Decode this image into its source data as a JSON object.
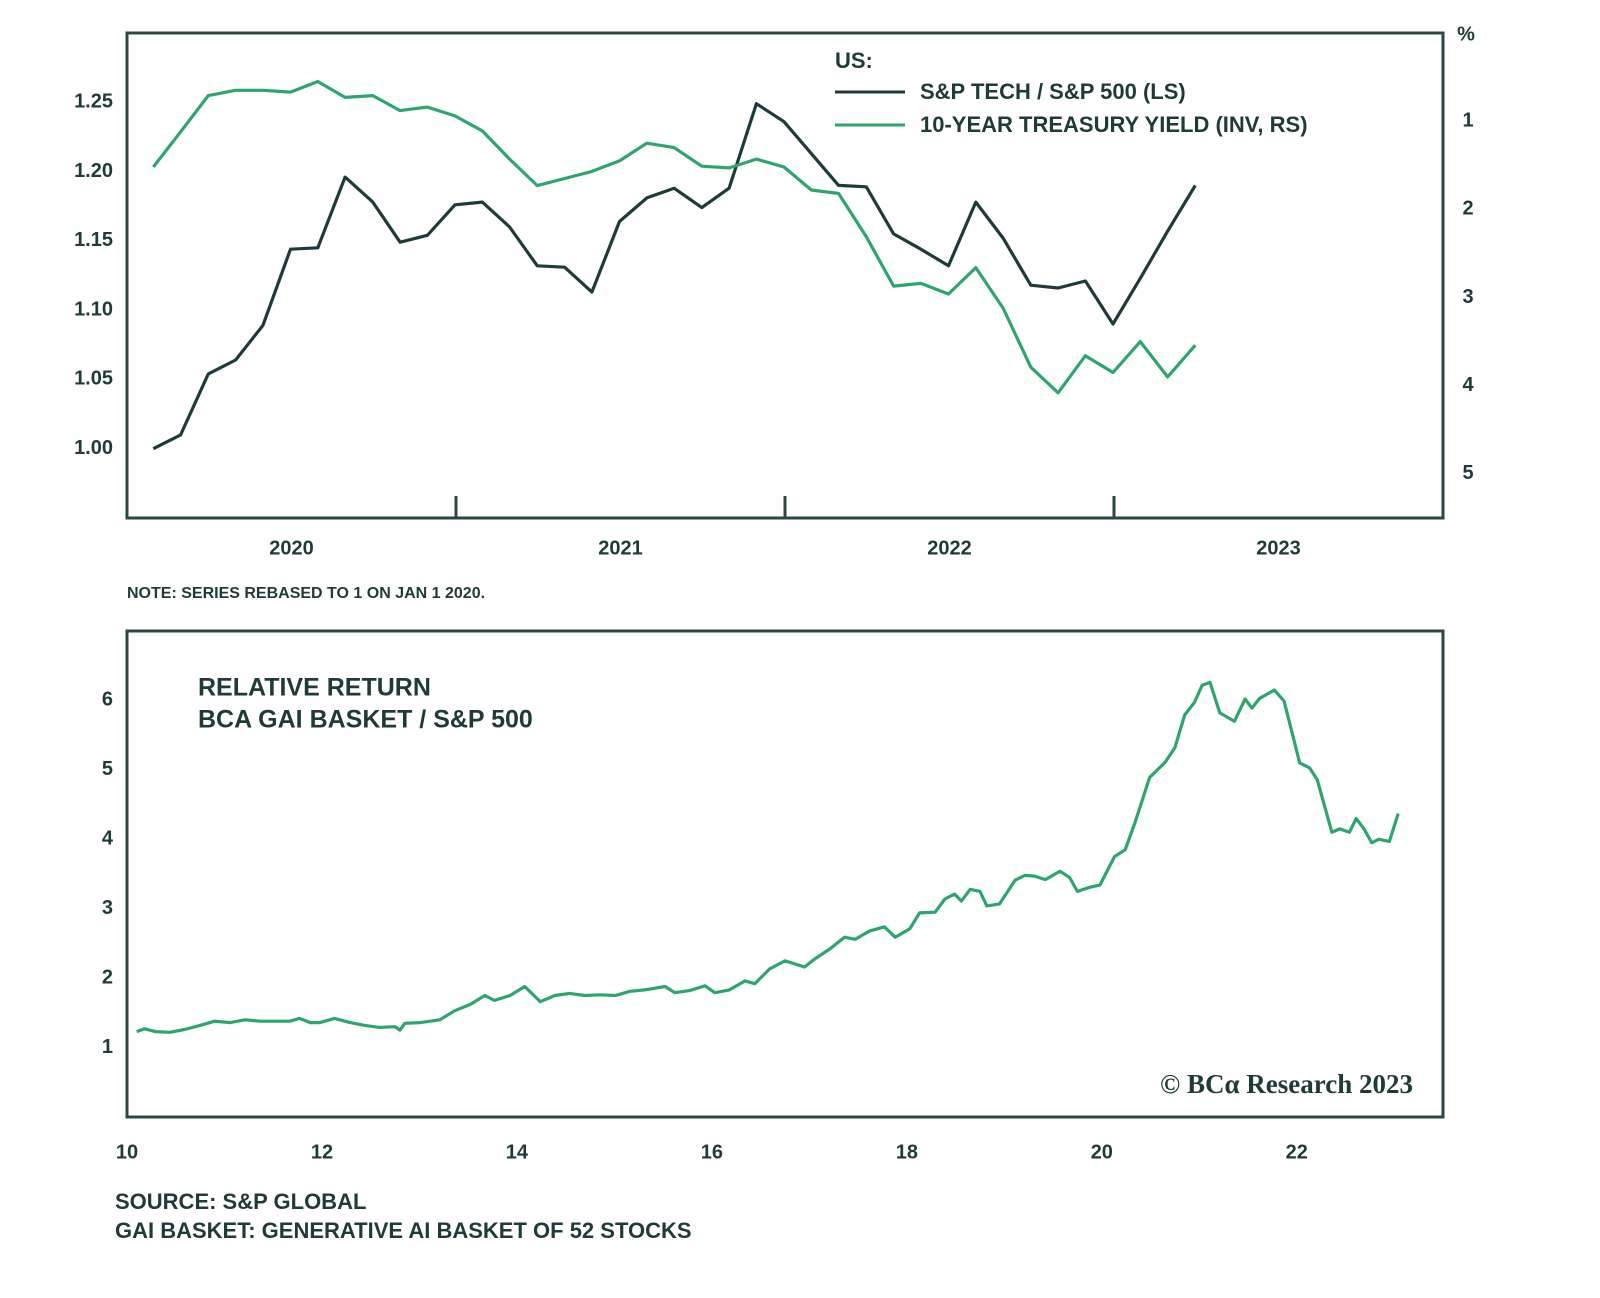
{
  "chart_data": [
    {
      "type": "line",
      "legend_title": "US:",
      "x": [
        2020.08,
        2020.163,
        2020.247,
        2020.33,
        2020.413,
        2020.497,
        2020.58,
        2020.663,
        2020.747,
        2020.83,
        2020.913,
        2020.997,
        2021.08,
        2021.163,
        2021.247,
        2021.33,
        2021.413,
        2021.497,
        2021.58,
        2021.663,
        2021.747,
        2021.83,
        2021.913,
        2021.997,
        2022.08,
        2022.163,
        2022.247,
        2022.33,
        2022.413,
        2022.497,
        2022.58,
        2022.663,
        2022.747,
        2022.83,
        2022.913,
        2022.997,
        2023.08,
        2023.163,
        2023.247
      ],
      "xlim": [
        2020,
        2024
      ],
      "x_labels": [
        "2020",
        "2021",
        "2022",
        "2023"
      ],
      "ylim": [
        0.95,
        1.3
      ],
      "yticks": [
        {
          "value": 1,
          "label": "1.00"
        },
        1.05,
        {
          "value": 1.1,
          "label": "1.10"
        },
        1.15,
        {
          "value": 1.2,
          "label": "1.20"
        },
        1.25
      ],
      "y2lim": [
        5.5,
        0
      ],
      "y2ticks": [
        1,
        2,
        3,
        4,
        5
      ],
      "y2_label": "%",
      "series": [
        {
          "name": "S&P TECH / S&P 500 (LS)",
          "color": "#1d3b3a",
          "values": [
            1.0,
            1.01,
            1.054,
            1.064,
            1.089,
            1.144,
            1.145,
            1.196,
            1.178,
            1.149,
            1.154,
            1.176,
            1.178,
            1.16,
            1.132,
            1.131,
            1.113,
            1.164,
            1.181,
            1.188,
            1.174,
            1.188,
            1.249,
            1.236,
            1.213,
            1.19,
            1.189,
            1.155,
            1.144,
            1.132,
            1.178,
            1.152,
            1.118,
            1.116,
            1.121,
            1.09,
            1.123,
            1.157,
            1.19
          ]
        },
        {
          "name": "10-YEAR TREASURY YIELD (INV, RS)",
          "color": "#2ea56f",
          "axis": "y2",
          "values": [
            1.52,
            1.12,
            0.71,
            0.65,
            0.65,
            0.67,
            0.55,
            0.73,
            0.71,
            0.88,
            0.84,
            0.94,
            1.11,
            1.43,
            1.73,
            1.65,
            1.57,
            1.45,
            1.25,
            1.3,
            1.51,
            1.53,
            1.43,
            1.52,
            1.78,
            1.82,
            2.31,
            2.87,
            2.84,
            2.96,
            2.66,
            3.12,
            3.79,
            4.08,
            3.66,
            3.85,
            3.5,
            3.9,
            3.54
          ]
        }
      ],
      "note": "NOTE: SERIES REBASED TO 1 ON JAN 1 2020."
    },
    {
      "type": "line",
      "title_lines": [
        "RELATIVE RETURN",
        "BCA GAI BASKET / S&P 500"
      ],
      "x": [
        10.1,
        10.18,
        10.29,
        10.44,
        10.59,
        10.75,
        10.9,
        11.06,
        11.21,
        11.36,
        11.52,
        11.67,
        11.77,
        11.88,
        11.98,
        12.13,
        12.29,
        12.44,
        12.59,
        12.75,
        12.8,
        12.85,
        13.01,
        13.21,
        13.36,
        13.52,
        13.67,
        13.77,
        13.93,
        14.08,
        14.24,
        14.39,
        14.54,
        14.7,
        14.85,
        15.01,
        15.16,
        15.31,
        15.52,
        15.62,
        15.77,
        15.93,
        16.03,
        16.18,
        16.34,
        16.44,
        16.59,
        16.75,
        16.95,
        17.06,
        17.21,
        17.36,
        17.47,
        17.62,
        17.77,
        17.88,
        18.03,
        18.13,
        18.29,
        18.39,
        18.49,
        18.56,
        18.65,
        18.75,
        18.82,
        18.95,
        19.11,
        19.21,
        19.31,
        19.42,
        19.57,
        19.67,
        19.75,
        19.88,
        19.98,
        20.13,
        20.24,
        20.34,
        20.49,
        20.65,
        20.75,
        20.85,
        20.95,
        21.03,
        21.11,
        21.21,
        21.36,
        21.47,
        21.54,
        21.62,
        21.77,
        21.87,
        22.03,
        22.13,
        22.21,
        22.36,
        22.44,
        22.54,
        22.61,
        22.69,
        22.77,
        22.84,
        22.95,
        23.04
      ],
      "xlim": [
        10,
        23.5
      ],
      "xticks": [
        10,
        12,
        14,
        16,
        18,
        20,
        22
      ],
      "ylim": [
        0,
        7
      ],
      "yticks": [
        1,
        2,
        3,
        4,
        5,
        6
      ],
      "series": [
        {
          "color": "#2ea56f",
          "values": [
            1.23,
            1.27,
            1.23,
            1.22,
            1.26,
            1.32,
            1.38,
            1.36,
            1.4,
            1.38,
            1.38,
            1.38,
            1.42,
            1.36,
            1.36,
            1.42,
            1.36,
            1.32,
            1.29,
            1.3,
            1.25,
            1.35,
            1.36,
            1.4,
            1.53,
            1.62,
            1.75,
            1.68,
            1.75,
            1.88,
            1.66,
            1.75,
            1.78,
            1.75,
            1.76,
            1.75,
            1.81,
            1.83,
            1.88,
            1.79,
            1.82,
            1.89,
            1.79,
            1.83,
            1.96,
            1.92,
            2.13,
            2.25,
            2.16,
            2.28,
            2.42,
            2.59,
            2.56,
            2.68,
            2.74,
            2.59,
            2.71,
            2.94,
            2.95,
            3.14,
            3.21,
            3.11,
            3.28,
            3.25,
            3.04,
            3.07,
            3.41,
            3.48,
            3.47,
            3.42,
            3.54,
            3.45,
            3.25,
            3.31,
            3.34,
            3.75,
            3.85,
            4.24,
            4.89,
            5.11,
            5.32,
            5.79,
            5.97,
            6.22,
            6.26,
            5.82,
            5.7,
            6.02,
            5.89,
            6.03,
            6.15,
            5.99,
            5.1,
            5.03,
            4.86,
            4.1,
            4.15,
            4.1,
            4.3,
            4.15,
            3.95,
            4.0,
            3.97,
            4.37
          ]
        }
      ],
      "watermark": "© BCα Research 2023",
      "source_notes": [
        "SOURCE: S&P GLOBAL",
        "GAI BASKET: GENERATIVE AI BASKET OF 52 STOCKS"
      ]
    }
  ]
}
